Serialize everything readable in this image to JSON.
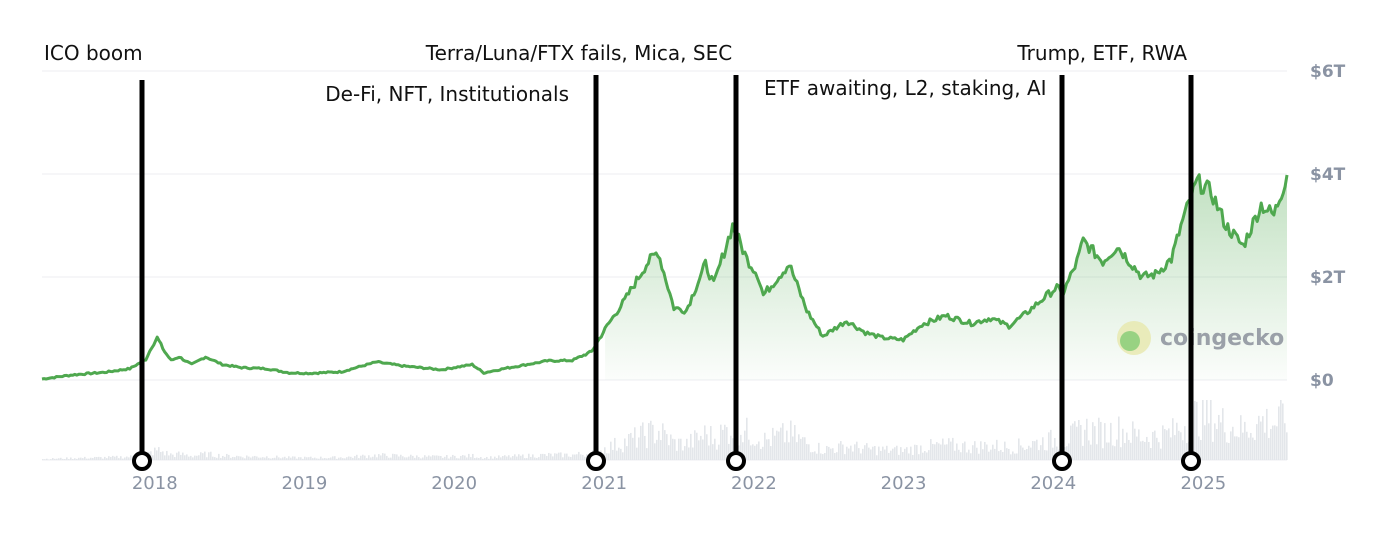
{
  "chart_data": {
    "type": "area",
    "title": "",
    "xlabel": "",
    "ylabel": "",
    "x_ticks": [
      "2018",
      "2019",
      "2020",
      "2021",
      "2022",
      "2023",
      "2024",
      "2025"
    ],
    "y_ticks": [
      "$0",
      "$2T",
      "$4T",
      "$6T"
    ],
    "ylim": [
      0,
      6
    ],
    "y_unit": "trillion USD",
    "grid": true,
    "line_color": "#4fa84f",
    "fill_color": "#4fa84f",
    "volume_color": "#e3e6ea",
    "series": [
      {
        "values": [
          [
            "2017-04-01",
            0.02
          ],
          [
            "2017-06-15",
            0.1
          ],
          [
            "2017-09-01",
            0.15
          ],
          [
            "2017-11-01",
            0.22
          ],
          [
            "2017-12-10",
            0.4
          ],
          [
            "2017-12-25",
            0.65
          ],
          [
            "2018-01-07",
            0.82
          ],
          [
            "2018-01-25",
            0.55
          ],
          [
            "2018-02-10",
            0.38
          ],
          [
            "2018-03-01",
            0.45
          ],
          [
            "2018-04-01",
            0.3
          ],
          [
            "2018-05-05",
            0.45
          ],
          [
            "2018-06-15",
            0.3
          ],
          [
            "2018-08-01",
            0.24
          ],
          [
            "2018-10-01",
            0.22
          ],
          [
            "2018-11-25",
            0.14
          ],
          [
            "2019-01-15",
            0.13
          ],
          [
            "2019-04-01",
            0.16
          ],
          [
            "2019-06-26",
            0.35
          ],
          [
            "2019-09-01",
            0.27
          ],
          [
            "2019-12-01",
            0.2
          ],
          [
            "2020-02-14",
            0.3
          ],
          [
            "2020-03-13",
            0.14
          ],
          [
            "2020-05-01",
            0.22
          ],
          [
            "2020-08-15",
            0.37
          ],
          [
            "2020-10-15",
            0.38
          ],
          [
            "2020-12-01",
            0.55
          ],
          [
            "2021-01-08",
            1.05
          ],
          [
            "2021-02-20",
            1.55
          ],
          [
            "2021-04-14",
            2.25
          ],
          [
            "2021-05-12",
            2.5
          ],
          [
            "2021-06-20",
            1.4
          ],
          [
            "2021-07-20",
            1.35
          ],
          [
            "2021-09-05",
            2.25
          ],
          [
            "2021-09-25",
            1.85
          ],
          [
            "2021-11-10",
            3.0
          ],
          [
            "2021-12-15",
            2.35
          ],
          [
            "2022-01-10",
            2.05
          ],
          [
            "2022-01-24",
            1.65
          ],
          [
            "2022-03-28",
            2.25
          ],
          [
            "2022-05-10",
            1.35
          ],
          [
            "2022-06-18",
            0.85
          ],
          [
            "2022-08-15",
            1.15
          ],
          [
            "2022-09-30",
            0.92
          ],
          [
            "2022-11-10",
            0.82
          ],
          [
            "2022-12-31",
            0.78
          ],
          [
            "2023-02-15",
            1.08
          ],
          [
            "2023-04-14",
            1.25
          ],
          [
            "2023-06-15",
            1.1
          ],
          [
            "2023-08-01",
            1.2
          ],
          [
            "2023-09-15",
            1.05
          ],
          [
            "2023-10-20",
            1.25
          ],
          [
            "2023-12-10",
            1.6
          ],
          [
            "2024-01-10",
            1.8
          ],
          [
            "2024-01-23",
            1.65
          ],
          [
            "2024-02-28",
            2.3
          ],
          [
            "2024-03-14",
            2.7
          ],
          [
            "2024-05-01",
            2.3
          ],
          [
            "2024-06-05",
            2.6
          ],
          [
            "2024-08-05",
            2.0
          ],
          [
            "2024-09-06",
            2.05
          ],
          [
            "2024-10-15",
            2.35
          ],
          [
            "2024-11-12",
            3.1
          ],
          [
            "2024-12-17",
            3.85
          ],
          [
            "2025-01-20",
            3.65
          ],
          [
            "2025-02-25",
            3.0
          ],
          [
            "2025-04-08",
            2.6
          ],
          [
            "2025-05-22",
            3.4
          ],
          [
            "2025-06-22",
            3.2
          ],
          [
            "2025-07-24",
            3.98
          ]
        ]
      }
    ],
    "annotations": [
      {
        "label": "ICO boom",
        "date": "2018-01-01"
      },
      {
        "label": "De-Fi, NFT, Institutionals",
        "date": "2021-01-01"
      },
      {
        "label": "Terra/Luna/FTX fails, Mica, SEC",
        "date": "2021-12-01"
      },
      {
        "label": "ETF awaiting, L2, staking, AI",
        "date": "2024-01-10"
      },
      {
        "label": "Trump, ETF, RWA",
        "date": "2024-12-01"
      }
    ],
    "watermark": "coingecko"
  }
}
